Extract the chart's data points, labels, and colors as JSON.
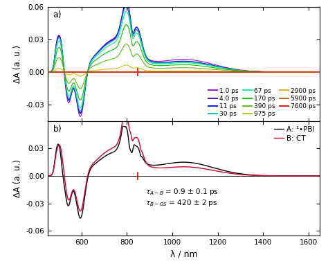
{
  "title_a": "a)",
  "title_b": "b)",
  "xlabel": "λ / nm",
  "ylabel": "ΔA (a. u.)",
  "xlim": [
    450,
    1650
  ],
  "ylim_a": [
    -0.045,
    0.06
  ],
  "ylim_b": [
    -0.065,
    0.06
  ],
  "xticks": [
    600,
    800,
    1000,
    1200,
    1400,
    1600
  ],
  "yticks_a": [
    -0.03,
    0.0,
    0.03,
    0.06
  ],
  "yticks_b": [
    -0.06,
    -0.03,
    0.0,
    0.03
  ],
  "legend_a": [
    {
      "label": "1.0 ps",
      "color": "#9900CC"
    },
    {
      "label": "4.0 ps",
      "color": "#5500BB"
    },
    {
      "label": "11 ps",
      "color": "#0000EE"
    },
    {
      "label": "30 ps",
      "color": "#00BBBB"
    },
    {
      "label": "67 ps",
      "color": "#00EE88"
    },
    {
      "label": "170 ps",
      "color": "#00BB00"
    },
    {
      "label": "390 ps",
      "color": "#55BB00"
    },
    {
      "label": "975 ps",
      "color": "#AACC00"
    },
    {
      "label": "2900 ps",
      "color": "#DDAA00"
    },
    {
      "label": "5900 ps",
      "color": "#CC5500"
    },
    {
      "label": "7600 ps",
      "color": "#EE0000"
    }
  ],
  "legend_b": [
    {
      "label": "A: ¹•PBI",
      "color": "#000000"
    },
    {
      "label": "B: CT",
      "color": "#CC0033"
    }
  ],
  "bg_color": "#ffffff"
}
